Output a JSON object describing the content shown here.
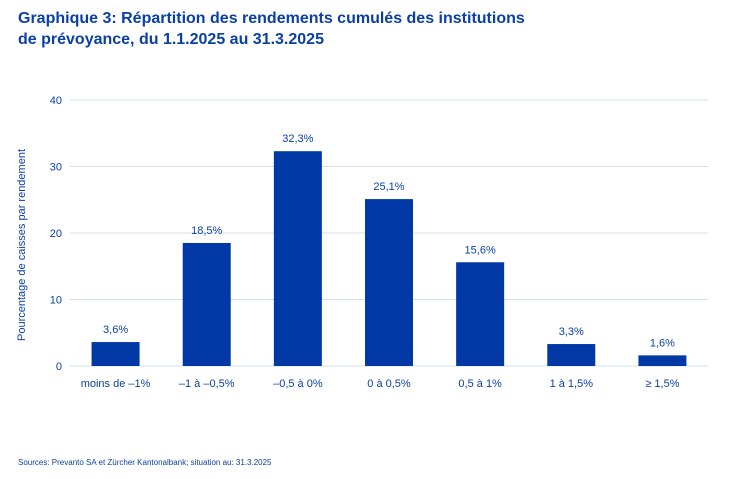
{
  "title_line1": "Graphique 3: Répartition des rendements cumulés des institutions",
  "title_line2": "de prévoyance, du 1.1.2025 au 31.3.2025",
  "source": "Sources: Prevanto SA et Zürcher Kantonalbank; situation au: 31.3.2025",
  "colors": {
    "bar": "#0039a6",
    "grid": "#cfe0f2",
    "text": "#0a3fa8"
  },
  "chart_data": {
    "type": "bar",
    "categories": [
      "moins de –1%",
      "–1 à –0,5%",
      "–0,5 à 0%",
      "0 à 0,5%",
      "0,5 à 1%",
      "1 à 1,5%",
      "≥ 1,5%"
    ],
    "values": [
      3.6,
      18.5,
      32.3,
      25.1,
      15.6,
      3.3,
      1.6
    ],
    "value_labels": [
      "3,6%",
      "18,5%",
      "32,3%",
      "25,1%",
      "15,6%",
      "3,3%",
      "1,6%"
    ],
    "title": "Répartition des rendements cumulés des institutions de prévoyance",
    "xlabel": "",
    "ylabel": "Pourcentage de caisses par rendement",
    "ylim": [
      0,
      40
    ],
    "yticks": [
      0,
      10,
      20,
      30,
      40
    ],
    "grid": true
  }
}
